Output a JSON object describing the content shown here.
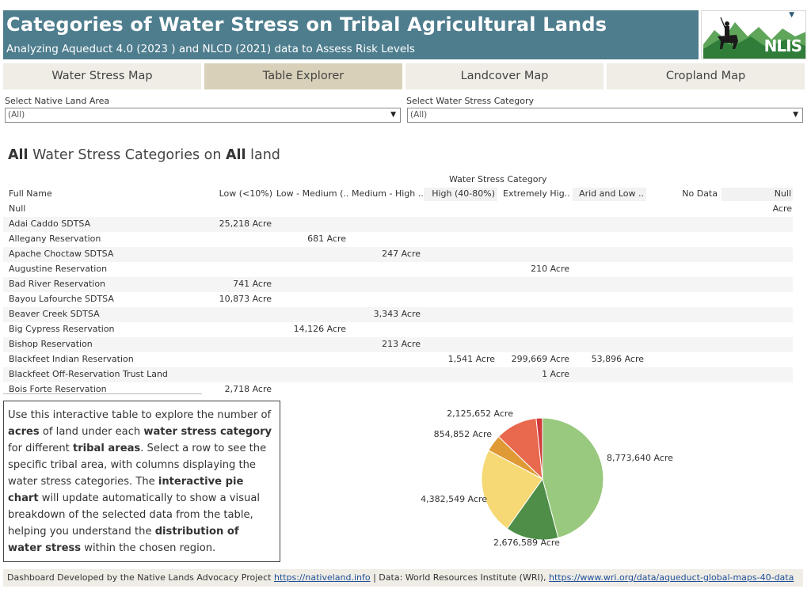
{
  "header": {
    "title": "Categories of Water Stress on Tribal Agricultural Lands",
    "subtitle": "Analyzing Aqueduct 4.0 (2023 ) and NLCD (2021) data to Assess Risk Levels",
    "logo_text": "NLIS"
  },
  "tabs": [
    {
      "label": "Water Stress Map",
      "active": false
    },
    {
      "label": "Table Explorer",
      "active": true
    },
    {
      "label": "Landcover Map",
      "active": false
    },
    {
      "label": "Cropland Map",
      "active": false
    }
  ],
  "filters": {
    "land_area": {
      "label": "Select Native Land Area",
      "value": "(All)"
    },
    "stress_category": {
      "label": "Select Water Stress Category",
      "value": "(All)"
    }
  },
  "section_title": {
    "prefix": "All",
    "middle": " Water Stress Categories on ",
    "bold2": "All",
    "suffix": " land"
  },
  "table": {
    "group_header": "Water Stress Category",
    "row_header": "Full Name",
    "columns": [
      "Low (<10%)",
      "Low - Medium (..",
      "Medium - High ..",
      "High (40-80%)",
      "Extremely Hig..",
      "Arid and Low ..",
      "No Data",
      "Null"
    ],
    "rows": [
      {
        "name": "Null",
        "values": [
          "",
          "",
          "",
          "",
          "",
          "",
          "",
          "Acre"
        ]
      },
      {
        "name": "Adai Caddo SDTSA",
        "values": [
          "25,218 Acre",
          "",
          "",
          "",
          "",
          "",
          "",
          ""
        ]
      },
      {
        "name": "Allegany Reservation",
        "values": [
          "",
          "681 Acre",
          "",
          "",
          "",
          "",
          "",
          ""
        ]
      },
      {
        "name": "Apache Choctaw SDTSA",
        "values": [
          "",
          "",
          "247 Acre",
          "",
          "",
          "",
          "",
          ""
        ]
      },
      {
        "name": "Augustine Reservation",
        "values": [
          "",
          "",
          "",
          "",
          "210 Acre",
          "",
          "",
          ""
        ]
      },
      {
        "name": "Bad River Reservation",
        "values": [
          "741 Acre",
          "",
          "",
          "",
          "",
          "",
          "",
          ""
        ]
      },
      {
        "name": "Bayou Lafourche SDTSA",
        "values": [
          "10,873 Acre",
          "",
          "",
          "",
          "",
          "",
          "",
          ""
        ]
      },
      {
        "name": "Beaver Creek SDTSA",
        "values": [
          "",
          "",
          "3,343 Acre",
          "",
          "",
          "",
          "",
          ""
        ]
      },
      {
        "name": "Big Cypress Reservation",
        "values": [
          "",
          "14,126 Acre",
          "",
          "",
          "",
          "",
          "",
          ""
        ]
      },
      {
        "name": "Bishop Reservation",
        "values": [
          "",
          "",
          "213 Acre",
          "",
          "",
          "",
          "",
          ""
        ]
      },
      {
        "name": "Blackfeet Indian Reservation",
        "values": [
          "",
          "",
          "",
          "1,541 Acre",
          "299,669 Acre",
          "53,896 Acre",
          "",
          ""
        ]
      },
      {
        "name": "Blackfeet Off-Reservation Trust Land",
        "values": [
          "",
          "",
          "",
          "",
          "1 Acre",
          "",
          "",
          ""
        ]
      },
      {
        "name": "Bois Forte Reservation",
        "values": [
          "2,718 Acre",
          "",
          "",
          "",
          "",
          "",
          "",
          ""
        ]
      }
    ]
  },
  "description": {
    "segments": [
      {
        "t": "Use this interactive table to explore the number of ",
        "b": false
      },
      {
        "t": "acres",
        "b": true
      },
      {
        "t": " of land under each ",
        "b": false
      },
      {
        "t": "water stress category",
        "b": true
      },
      {
        "t": " for different ",
        "b": false
      },
      {
        "t": "tribal areas",
        "b": true
      },
      {
        "t": ". Select a row to see the specific tribal area, with columns displaying the water stress categories. The ",
        "b": false
      },
      {
        "t": "interactive pie chart",
        "b": true
      },
      {
        "t": " will update automatically to show a visual breakdown of the selected data from the table, helping you understand the ",
        "b": false
      },
      {
        "t": "distribution of water stress",
        "b": true
      },
      {
        "t": " within the chosen region.",
        "b": false
      }
    ]
  },
  "chart_data": {
    "type": "pie",
    "title": "",
    "slices": [
      {
        "value": 8773640,
        "label": "8,773,640 Acre",
        "color": "#98c97e"
      },
      {
        "value": 2676589,
        "label": "2,676,589 Acre",
        "color": "#4e8e48"
      },
      {
        "value": 4382549,
        "label": "4,382,549 Acre",
        "color": "#f6d974"
      },
      {
        "value": 854852,
        "label": "854,852 Acre",
        "color": "#df9a36"
      },
      {
        "value": 2125652,
        "label": "2,125,652 Acre",
        "color": "#e8694e"
      },
      {
        "value": 321100,
        "label": "",
        "color": "#d23b3b"
      }
    ]
  },
  "footer": {
    "prefix": "Dashboard Developed by the Native Lands Advocacy Project ",
    "link1": "https://nativeland.info",
    "middle": " | Data: World Resources Institute (WRI), ",
    "link2": "https://www.wri.org/data/aqueduct-global-maps-40-data"
  }
}
